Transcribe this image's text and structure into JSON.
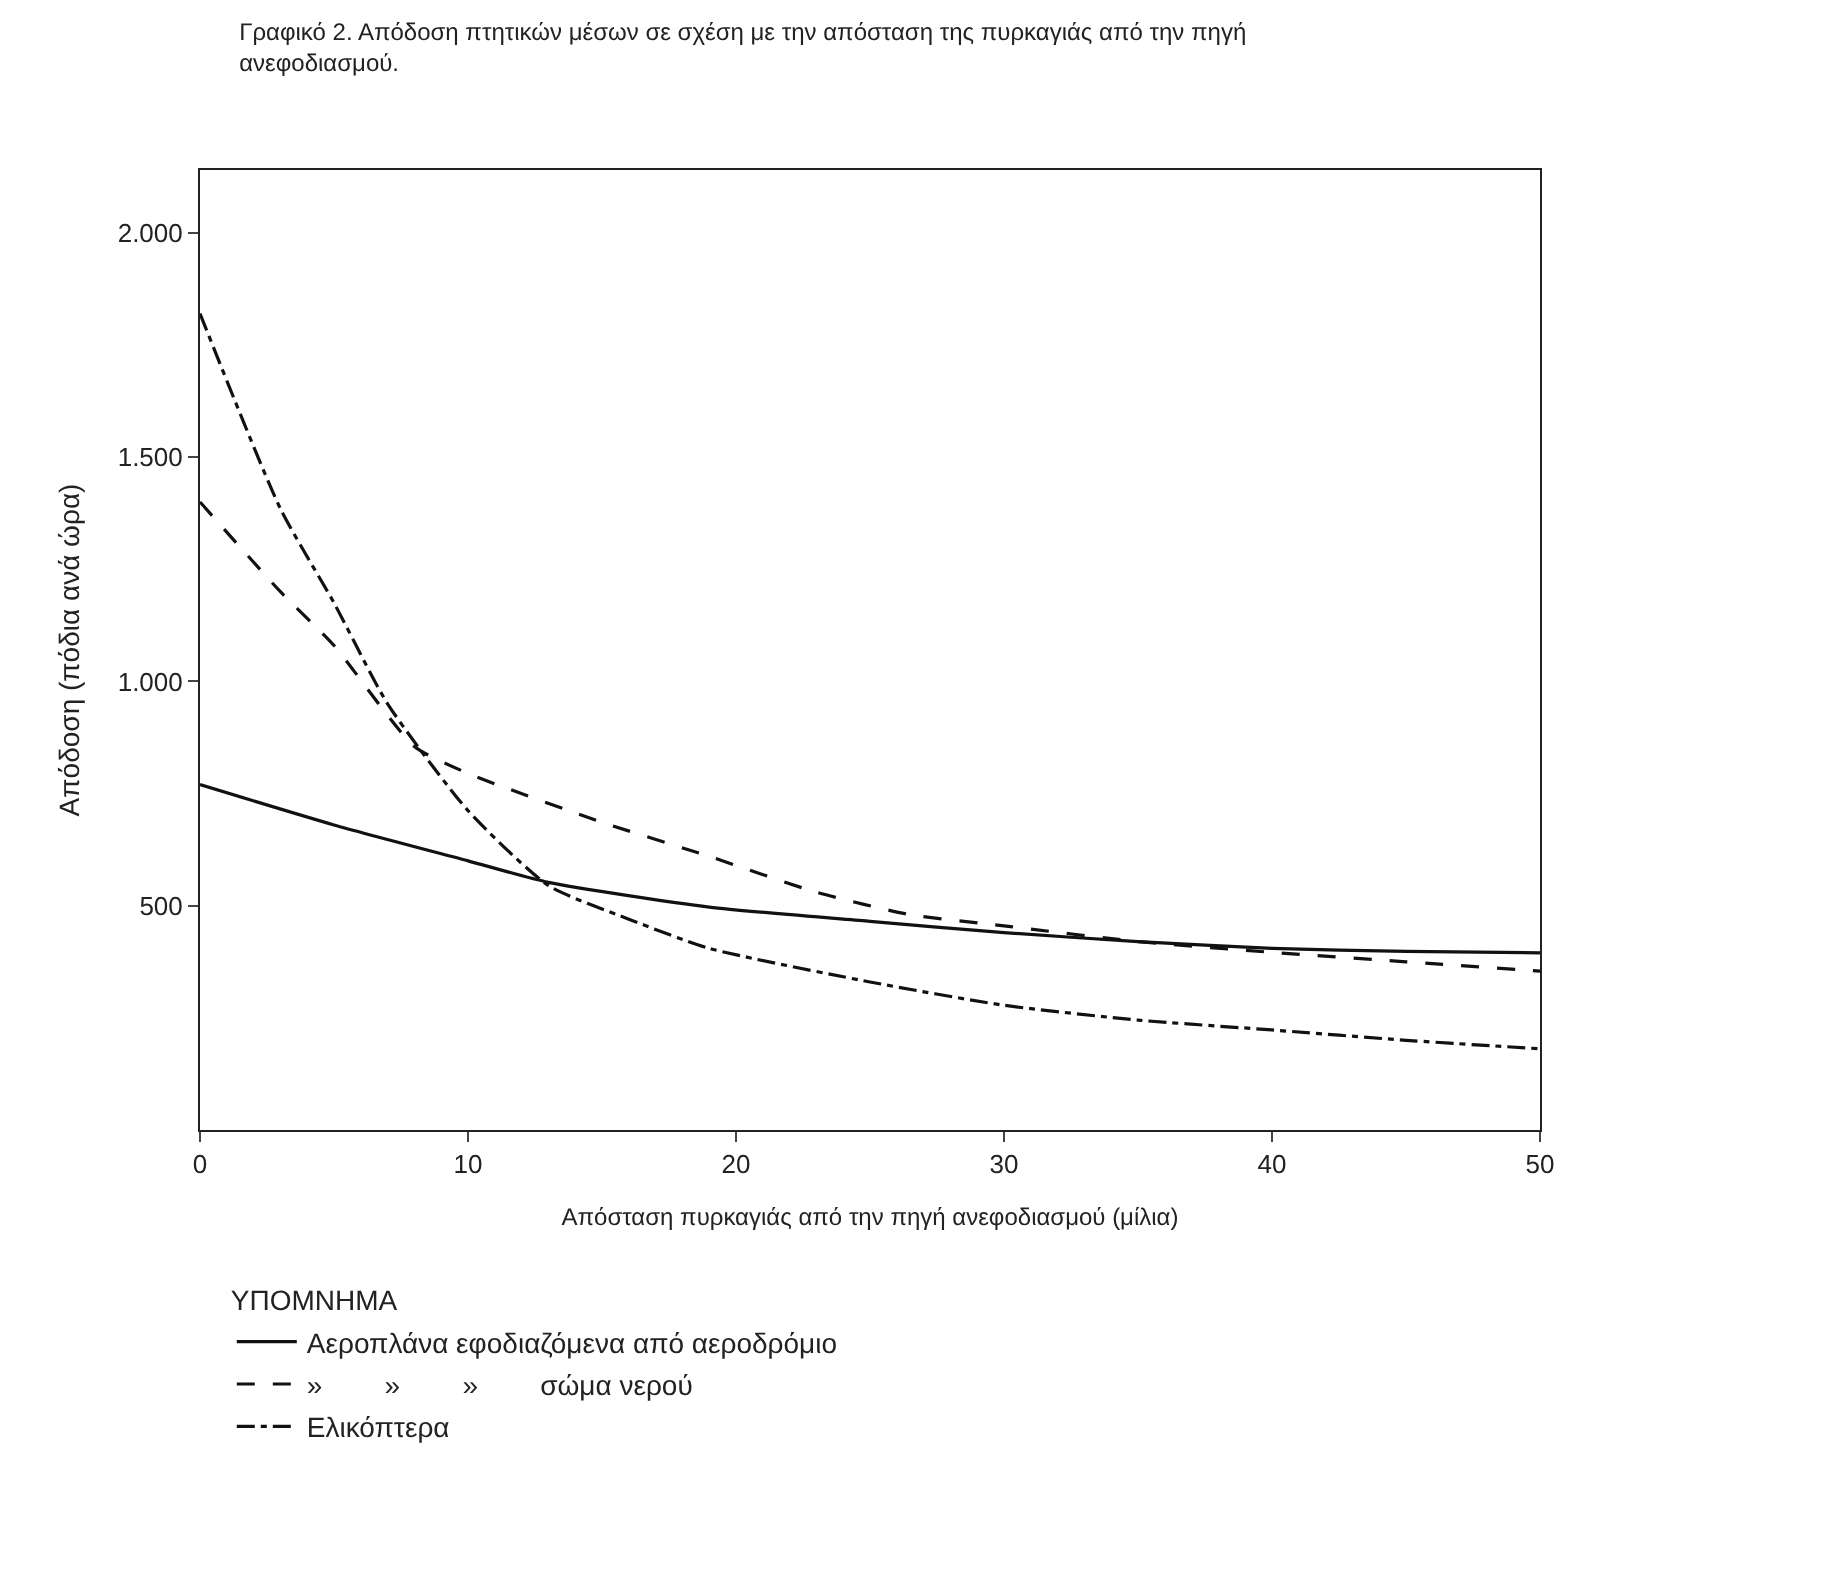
{
  "chart_data": {
    "type": "line",
    "title": "Γραφικό 2. Απόδοση πτητικών μέσων σε σχέση με την απόσταση της πυρκαγιάς από την πηγή ανεφοδιασμού.",
    "xlabel": "Απόσταση πυρκαγιάς από την πηγή ανεφοδιασμού (μίλια)",
    "ylabel": "Απόδοση (πόδια ανά ώρα)",
    "legend_title": "ΥΠΟΜΝΗΜΑ",
    "series": [
      {
        "name": "Αεροπλάνα εφοδιαζόμενα από αεροδρόμιο",
        "color": "#111111",
        "line_style": "solid",
        "x": [
          0,
          5,
          10,
          13,
          19,
          25,
          30,
          35,
          40,
          45,
          50
        ],
        "values": [
          770,
          680,
          600,
          552,
          497,
          465,
          440,
          420,
          405,
          398,
          395
        ]
      },
      {
        "name": "»        »        »        σώμα νερού",
        "color": "#111111",
        "line_style": "dashed",
        "x": [
          0,
          3,
          5,
          8,
          10,
          15,
          19,
          23,
          26.5,
          30,
          35,
          40,
          45,
          50
        ],
        "values": [
          1400,
          1200,
          1080,
          855,
          795,
          686,
          610,
          530,
          480,
          455,
          420,
          396,
          375,
          354
        ]
      },
      {
        "name": "Ελικόπτερα",
        "color": "#111111",
        "line_style": "dashdot",
        "x": [
          0,
          3,
          5,
          7,
          10,
          13,
          16,
          19,
          25,
          30,
          35,
          40,
          45,
          50
        ],
        "values": [
          1820,
          1385,
          1175,
          950,
          712,
          545,
          470,
          405,
          330,
          278,
          245,
          223,
          200,
          181
        ]
      }
    ],
    "xlim": [
      0,
      50
    ],
    "xticks": [
      0,
      10,
      20,
      30,
      40,
      50
    ],
    "ylim": [
      0,
      2140
    ],
    "yticks": [
      {
        "value": 500,
        "label": "500"
      },
      {
        "value": 1000,
        "label": "1.000"
      },
      {
        "value": 1500,
        "label": "1.500"
      },
      {
        "value": 2000,
        "label": "2.000"
      }
    ],
    "legend": "bottom",
    "marker": "none"
  }
}
